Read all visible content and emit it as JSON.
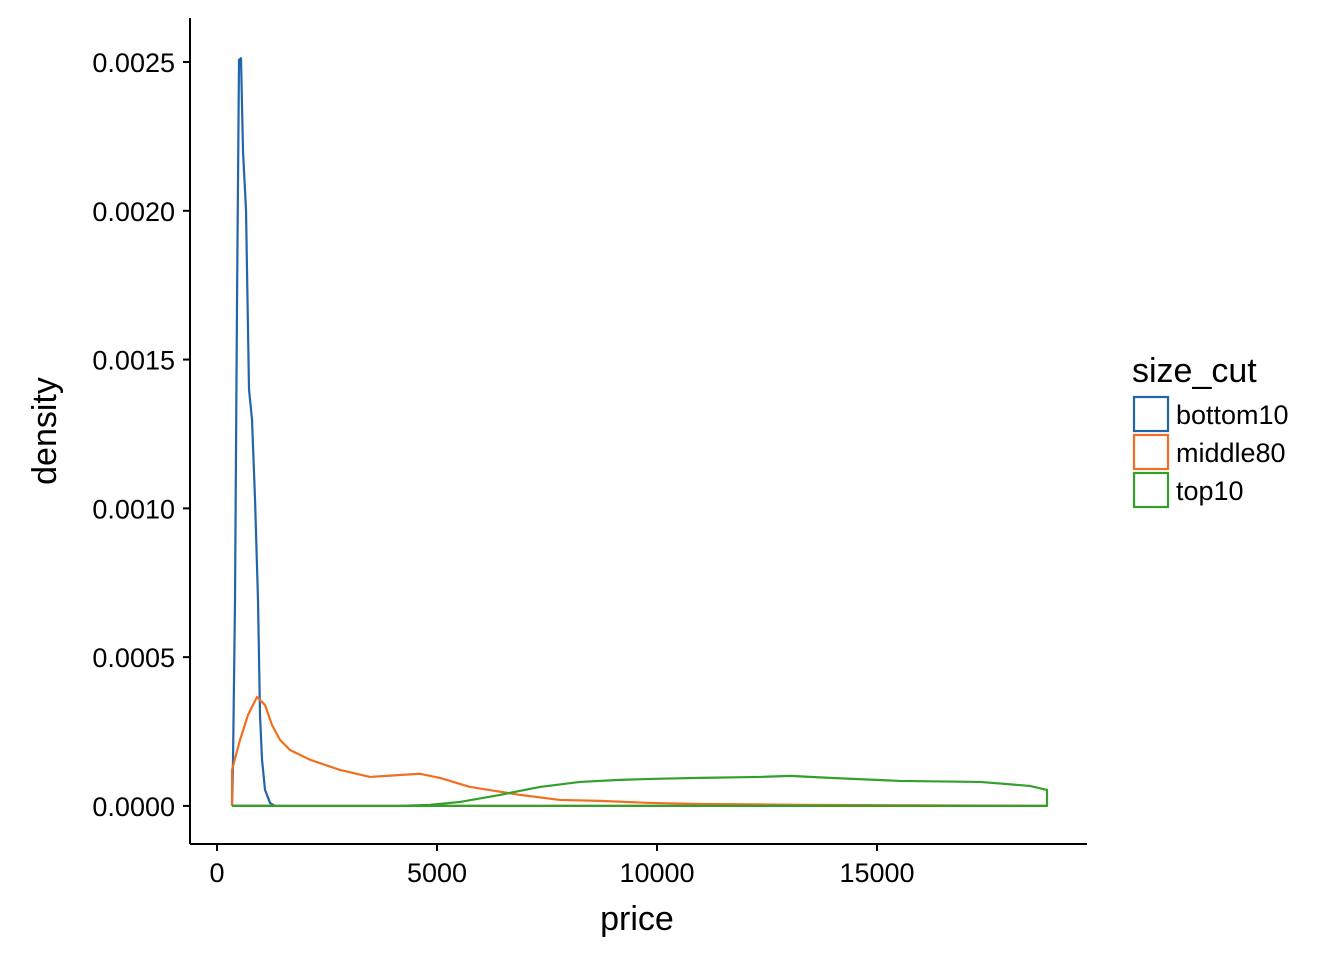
{
  "chart_data": {
    "type": "density",
    "x_label": "price",
    "y_label": "density",
    "legend_title": "size_cut",
    "legend_position": "right",
    "xlim": [
      -614,
      19773
    ],
    "ylim": [
      -0.000128,
      0.002648
    ],
    "xticks": [
      0,
      5000,
      10000,
      15000
    ],
    "yticks": [
      {
        "value": 0,
        "label": "0.0000"
      },
      0.0005,
      {
        "value": 0.001,
        "label": "0.0010"
      },
      0.0015,
      {
        "value": 0.002,
        "label": "0.0020"
      },
      0.0025
    ],
    "series": [
      {
        "name": "bottom10",
        "color": "#2265aa",
        "x": [
          341,
          364,
          409,
          455,
          500,
          545,
          591,
          659,
          727,
          795,
          864,
          932,
          977,
          1023,
          1091,
          1205,
          1318,
          341
        ],
        "values": [
          0,
          0.000155,
          0.000692,
          0.0017,
          0.002507,
          0.002513,
          0.0022,
          0.002003,
          0.0014,
          0.0013,
          0.00103,
          0.00069,
          0.000306,
          0.000155,
          5.4e-05,
          1e-05,
          0,
          0
        ]
      },
      {
        "name": "middle80",
        "color": "#f26f21",
        "x": [
          341,
          341,
          523,
          705,
          909,
          1091,
          1250,
          1432,
          1659,
          2114,
          2795,
          3477,
          4159,
          4614,
          5068,
          5750,
          6886,
          7795,
          8705,
          9841,
          10977,
          13250,
          18864,
          341
        ],
        "values": [
          0,
          0.000121,
          0.000222,
          0.000306,
          0.000366,
          0.000339,
          0.000272,
          0.000222,
          0.000188,
          0.000155,
          0.000121,
          9.74e-05,
          0.000104,
          0.000108,
          9.41e-05,
          6.38e-05,
          3.7e-05,
          2e-05,
          1.68e-05,
          1e-05,
          6.7e-06,
          3.4e-06,
          0,
          0
        ]
      },
      {
        "name": "top10",
        "color": "#33a02c",
        "x": [
          341,
          4159,
          4841,
          5523,
          6432,
          7341,
          8250,
          9159,
          9841,
          10977,
          12341,
          13023,
          13932,
          15523,
          17341,
          18477,
          18864,
          18864,
          341
        ],
        "values": [
          0,
          0,
          3.4e-06,
          1.34e-05,
          3.7e-05,
          6.38e-05,
          8.06e-05,
          8.74e-05,
          9.07e-05,
          9.41e-05,
          9.74e-05,
          0.000101,
          9.41e-05,
          8.4e-05,
          8.06e-05,
          6.72e-05,
          5.38e-05,
          0,
          0
        ]
      }
    ]
  }
}
